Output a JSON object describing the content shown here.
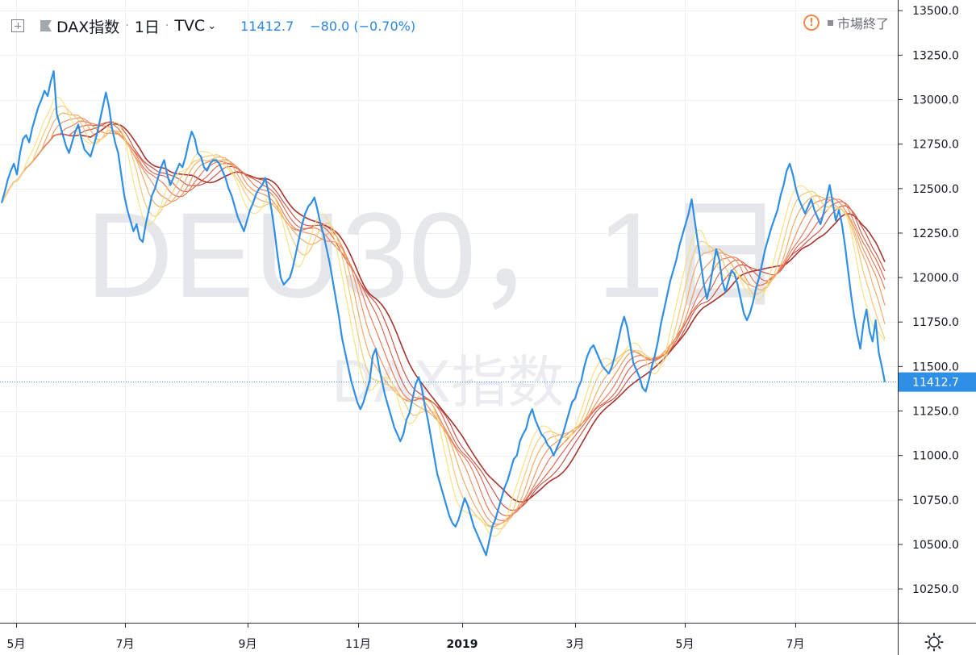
{
  "header": {
    "symbol_name": "DAX指数",
    "interval": "1日",
    "exchange": "TVC",
    "last_price": "11412.7",
    "change": "−80.0 (−0.70%)",
    "market_status": "市場終了"
  },
  "watermark": {
    "line1": "DEU30，1日",
    "line2": "DAX指数"
  },
  "colors": {
    "price": "#2f8ee5",
    "ribbon": [
      "#f7e07b",
      "#f5c46c",
      "#f2a760",
      "#ee8d58",
      "#e77451",
      "#dc5e47",
      "#c9493b",
      "#a8332d"
    ],
    "grid": "#eef0f3",
    "axis_text": "#131722"
  },
  "chart_data": {
    "type": "line",
    "x_ticks": [
      "5月",
      "7月",
      "9月",
      "11月",
      "2019",
      "3月",
      "5月",
      "7月"
    ],
    "y_ticks": [
      10250,
      10500,
      10750,
      11000,
      11250,
      11500,
      11750,
      12000,
      12250,
      12500,
      12750,
      13000,
      13250,
      13500
    ],
    "ylim": [
      10060,
      13560
    ],
    "last_value_label": "11412.7",
    "series": [
      {
        "role": "price",
        "values": [
          12420,
          12480,
          12550,
          12600,
          12640,
          12580,
          12700,
          12780,
          12800,
          12760,
          12840,
          12900,
          12960,
          13000,
          13050,
          13020,
          13100,
          13160,
          12920,
          12860,
          12800,
          12740,
          12700,
          12760,
          12820,
          12860,
          12780,
          12720,
          12700,
          12680,
          12740,
          12800,
          12880,
          12960,
          13040,
          12960,
          12840,
          12760,
          12700,
          12580,
          12460,
          12380,
          12320,
          12260,
          12300,
          12220,
          12200,
          12300,
          12380,
          12460,
          12500,
          12560,
          12620,
          12660,
          12580,
          12520,
          12560,
          12600,
          12640,
          12620,
          12680,
          12760,
          12820,
          12780,
          12700,
          12680,
          12620,
          12600,
          12640,
          12660,
          12660,
          12640,
          12600,
          12560,
          12500,
          12460,
          12400,
          12340,
          12300,
          12260,
          12320,
          12380,
          12420,
          12470,
          12500,
          12520,
          12560,
          12480,
          12380,
          12260,
          12120,
          12000,
          11960,
          11980,
          12000,
          12060,
          12140,
          12220,
          12300,
          12360,
          12400,
          12420,
          12450,
          12380,
          12300,
          12240,
          12160,
          12080,
          11980,
          11880,
          11780,
          11660,
          11580,
          11500,
          11420,
          11360,
          11300,
          11260,
          11300,
          11360,
          11420,
          11560,
          11600,
          11500,
          11420,
          11340,
          11280,
          11220,
          11160,
          11120,
          11080,
          11120,
          11200,
          11240,
          11320,
          11400,
          11440,
          11380,
          11280,
          11200,
          11100,
          11000,
          10900,
          10840,
          10780,
          10720,
          10660,
          10620,
          10600,
          10640,
          10700,
          10760,
          10720,
          10660,
          10600,
          10560,
          10520,
          10480,
          10440,
          10520,
          10600,
          10640,
          10700,
          10760,
          10820,
          10860,
          10920,
          10980,
          11000,
          11080,
          11120,
          11150,
          11220,
          11260,
          11200,
          11160,
          11120,
          11100,
          11060,
          11040,
          11000,
          11040,
          11080,
          11120,
          11180,
          11240,
          11300,
          11320,
          11380,
          11420,
          11500,
          11560,
          11600,
          11620,
          11580,
          11540,
          11500,
          11480,
          11460,
          11500,
          11560,
          11640,
          11720,
          11780,
          11720,
          11620,
          11520,
          11480,
          11440,
          11380,
          11360,
          11420,
          11500,
          11560,
          11640,
          11740,
          11820,
          11900,
          11980,
          12040,
          12100,
          12180,
          12240,
          12300,
          12360,
          12440,
          12320,
          12200,
          12080,
          11960,
          11880,
          11960,
          12060,
          12160,
          12100,
          11980,
          11920,
          11980,
          12040,
          12020,
          11960,
          11880,
          11800,
          11760,
          11800,
          11860,
          11940,
          12000,
          12080,
          12160,
          12220,
          12280,
          12330,
          12380,
          12460,
          12520,
          12600,
          12640,
          12580,
          12500,
          12440,
          12400,
          12360,
          12400,
          12440,
          12380,
          12340,
          12300,
          12360,
          12440,
          12520,
          12420,
          12320,
          12380,
          12300,
          12180,
          12040,
          11900,
          11780,
          11680,
          11600,
          11740,
          11820,
          11700,
          11640,
          11760,
          11580,
          11500,
          11412.7
        ]
      }
    ]
  }
}
